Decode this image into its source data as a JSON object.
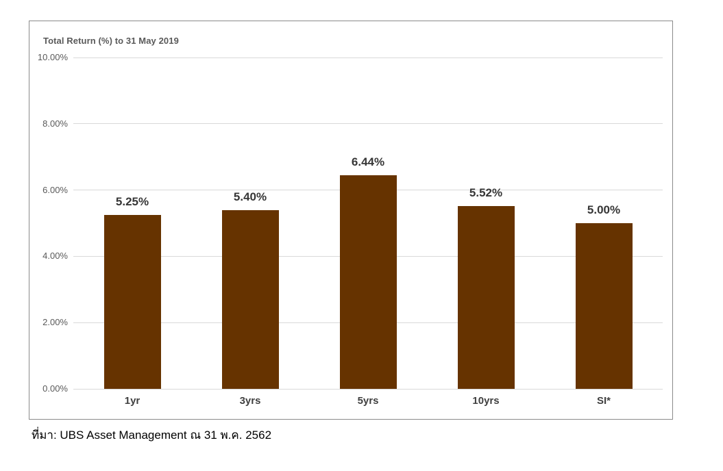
{
  "chart": {
    "bar_color": "#663300",
    "gridline_color": "#d9d9d9",
    "border_color": "#8a8a8a",
    "title_color": "#595959",
    "tick_color": "#595959",
    "data_label_color": "#363636"
  },
  "chart_data": {
    "type": "bar",
    "title": "Total Return (%) to 31 May 2019",
    "categories": [
      "1yr",
      "3yrs",
      "5yrs",
      "10yrs",
      "SI*"
    ],
    "values": [
      5.25,
      5.4,
      6.44,
      5.52,
      5.0
    ],
    "value_labels": [
      "5.25%",
      "5.40%",
      "6.44%",
      "5.52%",
      "5.00%"
    ],
    "xlabel": "",
    "ylabel": "Total Return (%)",
    "ylim": [
      0,
      10
    ],
    "yticks": [
      0,
      2,
      4,
      6,
      8,
      10
    ],
    "ytick_labels": [
      "0.00%",
      "2.00%",
      "4.00%",
      "6.00%",
      "8.00%",
      "10.00%"
    ],
    "grid": true,
    "legend": false,
    "bar_color": "#663300"
  },
  "footer": {
    "source_text": "ที่มา: UBS Asset Management ณ 31 พ.ค. 2562"
  }
}
